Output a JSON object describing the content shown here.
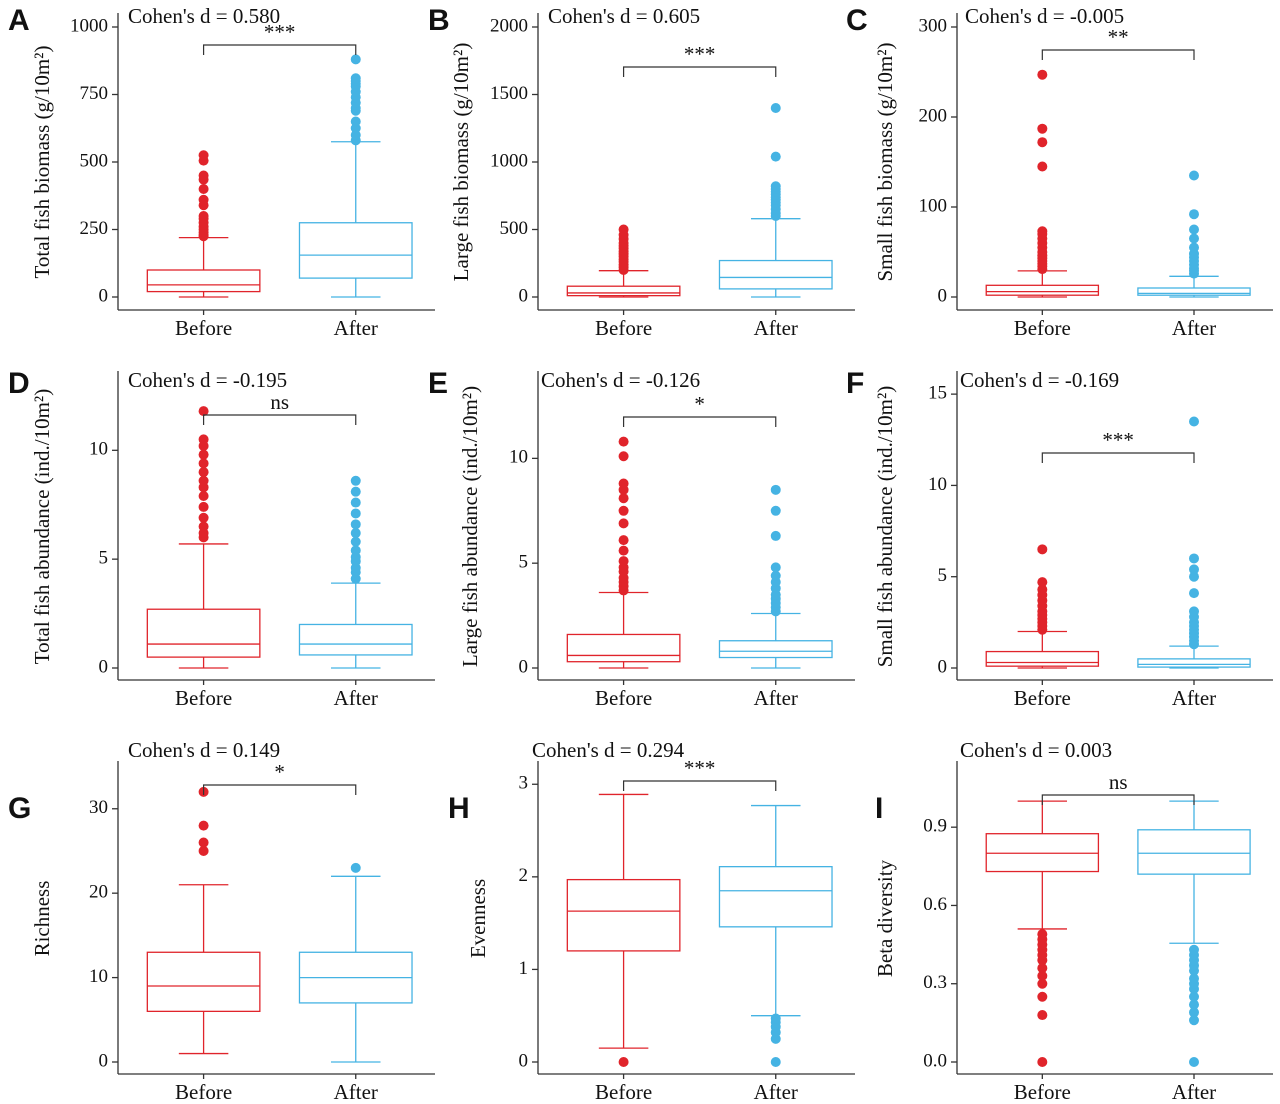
{
  "colors": {
    "before": "#e0242b",
    "after": "#45b3e3",
    "axis": "#333333"
  },
  "chart_data": [
    {
      "type": "box",
      "panel": "A",
      "cohen_d": "Cohen's d = 0.580",
      "significance": "***",
      "ylabel": "Total fish biomass (g/10m²)",
      "ylim": [
        0,
        1000
      ],
      "yticks": [
        0,
        250,
        500,
        750,
        1000
      ],
      "categories": [
        "Before",
        "After"
      ],
      "boxes": [
        {
          "name": "Before",
          "min": 0,
          "q1": 20,
          "median": 45,
          "q3": 100,
          "max": 220,
          "outliers": [
            225,
            230,
            240,
            250,
            260,
            275,
            290,
            300,
            340,
            360,
            400,
            435,
            450,
            505,
            525
          ]
        },
        {
          "name": "After",
          "min": 0,
          "q1": 70,
          "median": 155,
          "q3": 275,
          "max": 575,
          "outliers": [
            580,
            600,
            625,
            650,
            690,
            700,
            720,
            740,
            760,
            780,
            790,
            800,
            810,
            880
          ]
        }
      ]
    },
    {
      "type": "box",
      "panel": "B",
      "cohen_d": "Cohen's d = 0.605",
      "significance": "***",
      "ylabel": "Large fish biomass (g/10m²)",
      "ylim": [
        0,
        2000
      ],
      "yticks": [
        0,
        500,
        1000,
        1500,
        2000
      ],
      "categories": [
        "Before",
        "After"
      ],
      "boxes": [
        {
          "name": "Before",
          "min": 0,
          "q1": 10,
          "median": 30,
          "q3": 80,
          "max": 195,
          "outliers": [
            200,
            220,
            240,
            260,
            280,
            300,
            320,
            340,
            360,
            380,
            400,
            430,
            460,
            500
          ]
        },
        {
          "name": "After",
          "min": 0,
          "q1": 60,
          "median": 145,
          "q3": 270,
          "max": 580,
          "outliers": [
            600,
            620,
            650,
            680,
            700,
            720,
            740,
            760,
            780,
            800,
            820,
            1040,
            1400
          ]
        }
      ]
    },
    {
      "type": "box",
      "panel": "C",
      "cohen_d": "Cohen's d = -0.005",
      "significance": "**",
      "ylabel": "Small fish biomass (g/10m²)",
      "ylim": [
        0,
        300
      ],
      "yticks": [
        0,
        100,
        200,
        300
      ],
      "categories": [
        "Before",
        "After"
      ],
      "boxes": [
        {
          "name": "Before",
          "min": 0,
          "q1": 2,
          "median": 6,
          "q3": 13,
          "max": 29,
          "outliers": [
            31,
            34,
            37,
            40,
            43,
            46,
            50,
            55,
            60,
            65,
            70,
            73,
            145,
            172,
            187,
            247
          ]
        },
        {
          "name": "After",
          "min": 0,
          "q1": 2,
          "median": 4,
          "q3": 10,
          "max": 23,
          "outliers": [
            26,
            29,
            32,
            36,
            40,
            44,
            48,
            55,
            65,
            75,
            92,
            135
          ]
        }
      ]
    },
    {
      "type": "box",
      "panel": "D",
      "cohen_d": "Cohen's d = -0.195",
      "significance": "ns",
      "ylabel": "Total fish abundance (ind./10m²)",
      "ylim": [
        0,
        13
      ],
      "yticks": [
        0,
        5,
        10
      ],
      "categories": [
        "Before",
        "After"
      ],
      "boxes": [
        {
          "name": "Before",
          "min": 0,
          "q1": 0.5,
          "median": 1.1,
          "q3": 2.7,
          "max": 5.7,
          "outliers": [
            6.0,
            6.2,
            6.5,
            6.9,
            7.4,
            7.9,
            8.3,
            8.6,
            9.0,
            9.4,
            9.8,
            10.2,
            10.5,
            11.8
          ]
        },
        {
          "name": "After",
          "min": 0,
          "q1": 0.6,
          "median": 1.1,
          "q3": 2.0,
          "max": 3.9,
          "outliers": [
            4.1,
            4.4,
            4.6,
            4.9,
            5.1,
            5.4,
            5.8,
            6.2,
            6.6,
            7.1,
            7.6,
            8.1,
            8.6
          ]
        }
      ]
    },
    {
      "type": "box",
      "panel": "E",
      "cohen_d": "Cohen's d = -0.126",
      "significance": "*",
      "ylabel": "Large fish abundance  (ind./10m²)",
      "ylim": [
        0,
        13.5
      ],
      "yticks": [
        0,
        5,
        10
      ],
      "categories": [
        "Before",
        "After"
      ],
      "boxes": [
        {
          "name": "Before",
          "min": 0,
          "q1": 0.3,
          "median": 0.6,
          "q3": 1.6,
          "max": 3.6,
          "outliers": [
            3.7,
            3.9,
            4.1,
            4.3,
            4.6,
            4.8,
            5.1,
            5.6,
            6.1,
            6.9,
            7.5,
            8.1,
            8.5,
            8.8,
            10.1,
            10.8
          ]
        },
        {
          "name": "After",
          "min": 0,
          "q1": 0.5,
          "median": 0.8,
          "q3": 1.3,
          "max": 2.6,
          "outliers": [
            2.7,
            2.9,
            3.1,
            3.3,
            3.5,
            3.8,
            4.1,
            4.4,
            4.8,
            6.3,
            7.5,
            8.5
          ]
        }
      ]
    },
    {
      "type": "box",
      "panel": "F",
      "cohen_d": "Cohen's d = -0.169",
      "significance": "***",
      "ylabel": "Small fish abundance  (ind./10m²)",
      "ylim": [
        0,
        15.5
      ],
      "yticks": [
        0,
        5,
        10,
        15
      ],
      "categories": [
        "Before",
        "After"
      ],
      "boxes": [
        {
          "name": "Before",
          "min": 0,
          "q1": 0.1,
          "median": 0.3,
          "q3": 0.9,
          "max": 2.0,
          "outliers": [
            2.1,
            2.3,
            2.5,
            2.7,
            2.9,
            3.1,
            3.4,
            3.7,
            4.0,
            4.3,
            4.7,
            6.5
          ]
        },
        {
          "name": "After",
          "min": 0,
          "q1": 0.05,
          "median": 0.2,
          "q3": 0.5,
          "max": 1.2,
          "outliers": [
            1.3,
            1.5,
            1.7,
            1.9,
            2.1,
            2.3,
            2.5,
            2.8,
            3.1,
            4.1,
            5.0,
            5.4,
            6.0,
            13.5
          ]
        }
      ]
    },
    {
      "type": "box",
      "panel": "G",
      "cohen_d": "Cohen's d = 0.149",
      "significance": "*",
      "ylabel": "Richness",
      "ylim": [
        0,
        34
      ],
      "yticks": [
        0,
        10,
        20,
        30
      ],
      "categories": [
        "Before",
        "After"
      ],
      "boxes": [
        {
          "name": "Before",
          "min": 1,
          "q1": 6,
          "median": 9,
          "q3": 13,
          "max": 21,
          "outliers": [
            25,
            26,
            28,
            32
          ]
        },
        {
          "name": "After",
          "min": 0,
          "q1": 7,
          "median": 10,
          "q3": 13,
          "max": 22,
          "outliers": [
            23
          ]
        }
      ]
    },
    {
      "type": "box",
      "panel": "H",
      "cohen_d": "Cohen's d = 0.294",
      "significance": "***",
      "ylabel": "Evenness",
      "ylim": [
        0,
        3.1
      ],
      "yticks": [
        0,
        1,
        2,
        3
      ],
      "categories": [
        "Before",
        "After"
      ],
      "boxes": [
        {
          "name": "Before",
          "min": 0.15,
          "q1": 1.2,
          "median": 1.63,
          "q3": 1.97,
          "max": 2.89,
          "outliers": [
            0.0
          ]
        },
        {
          "name": "After",
          "min": 0.5,
          "q1": 1.46,
          "median": 1.85,
          "q3": 2.11,
          "max": 2.77,
          "outliers": [
            0.0,
            0.25,
            0.32,
            0.38,
            0.43,
            0.47
          ]
        }
      ]
    },
    {
      "type": "box",
      "panel": "I",
      "cohen_d": "Cohen's d = 0.003",
      "significance": "ns",
      "ylabel": "Beta diversity",
      "ylim": [
        0,
        1.1
      ],
      "yticks": [
        0.0,
        0.3,
        0.6,
        0.9
      ],
      "ytick_labels": [
        "0.0",
        "0.3",
        "0.6",
        "0.9"
      ],
      "categories": [
        "Before",
        "After"
      ],
      "boxes": [
        {
          "name": "Before",
          "min": 0.51,
          "q1": 0.73,
          "median": 0.8,
          "q3": 0.875,
          "max": 1.0,
          "outliers": [
            0.0,
            0.18,
            0.25,
            0.3,
            0.33,
            0.36,
            0.39,
            0.41,
            0.43,
            0.45,
            0.47,
            0.49
          ]
        },
        {
          "name": "After",
          "min": 0.455,
          "q1": 0.72,
          "median": 0.8,
          "q3": 0.89,
          "max": 1.0,
          "outliers": [
            0.0,
            0.16,
            0.19,
            0.22,
            0.25,
            0.28,
            0.3,
            0.32,
            0.35,
            0.37,
            0.39,
            0.41,
            0.43
          ]
        }
      ]
    }
  ]
}
